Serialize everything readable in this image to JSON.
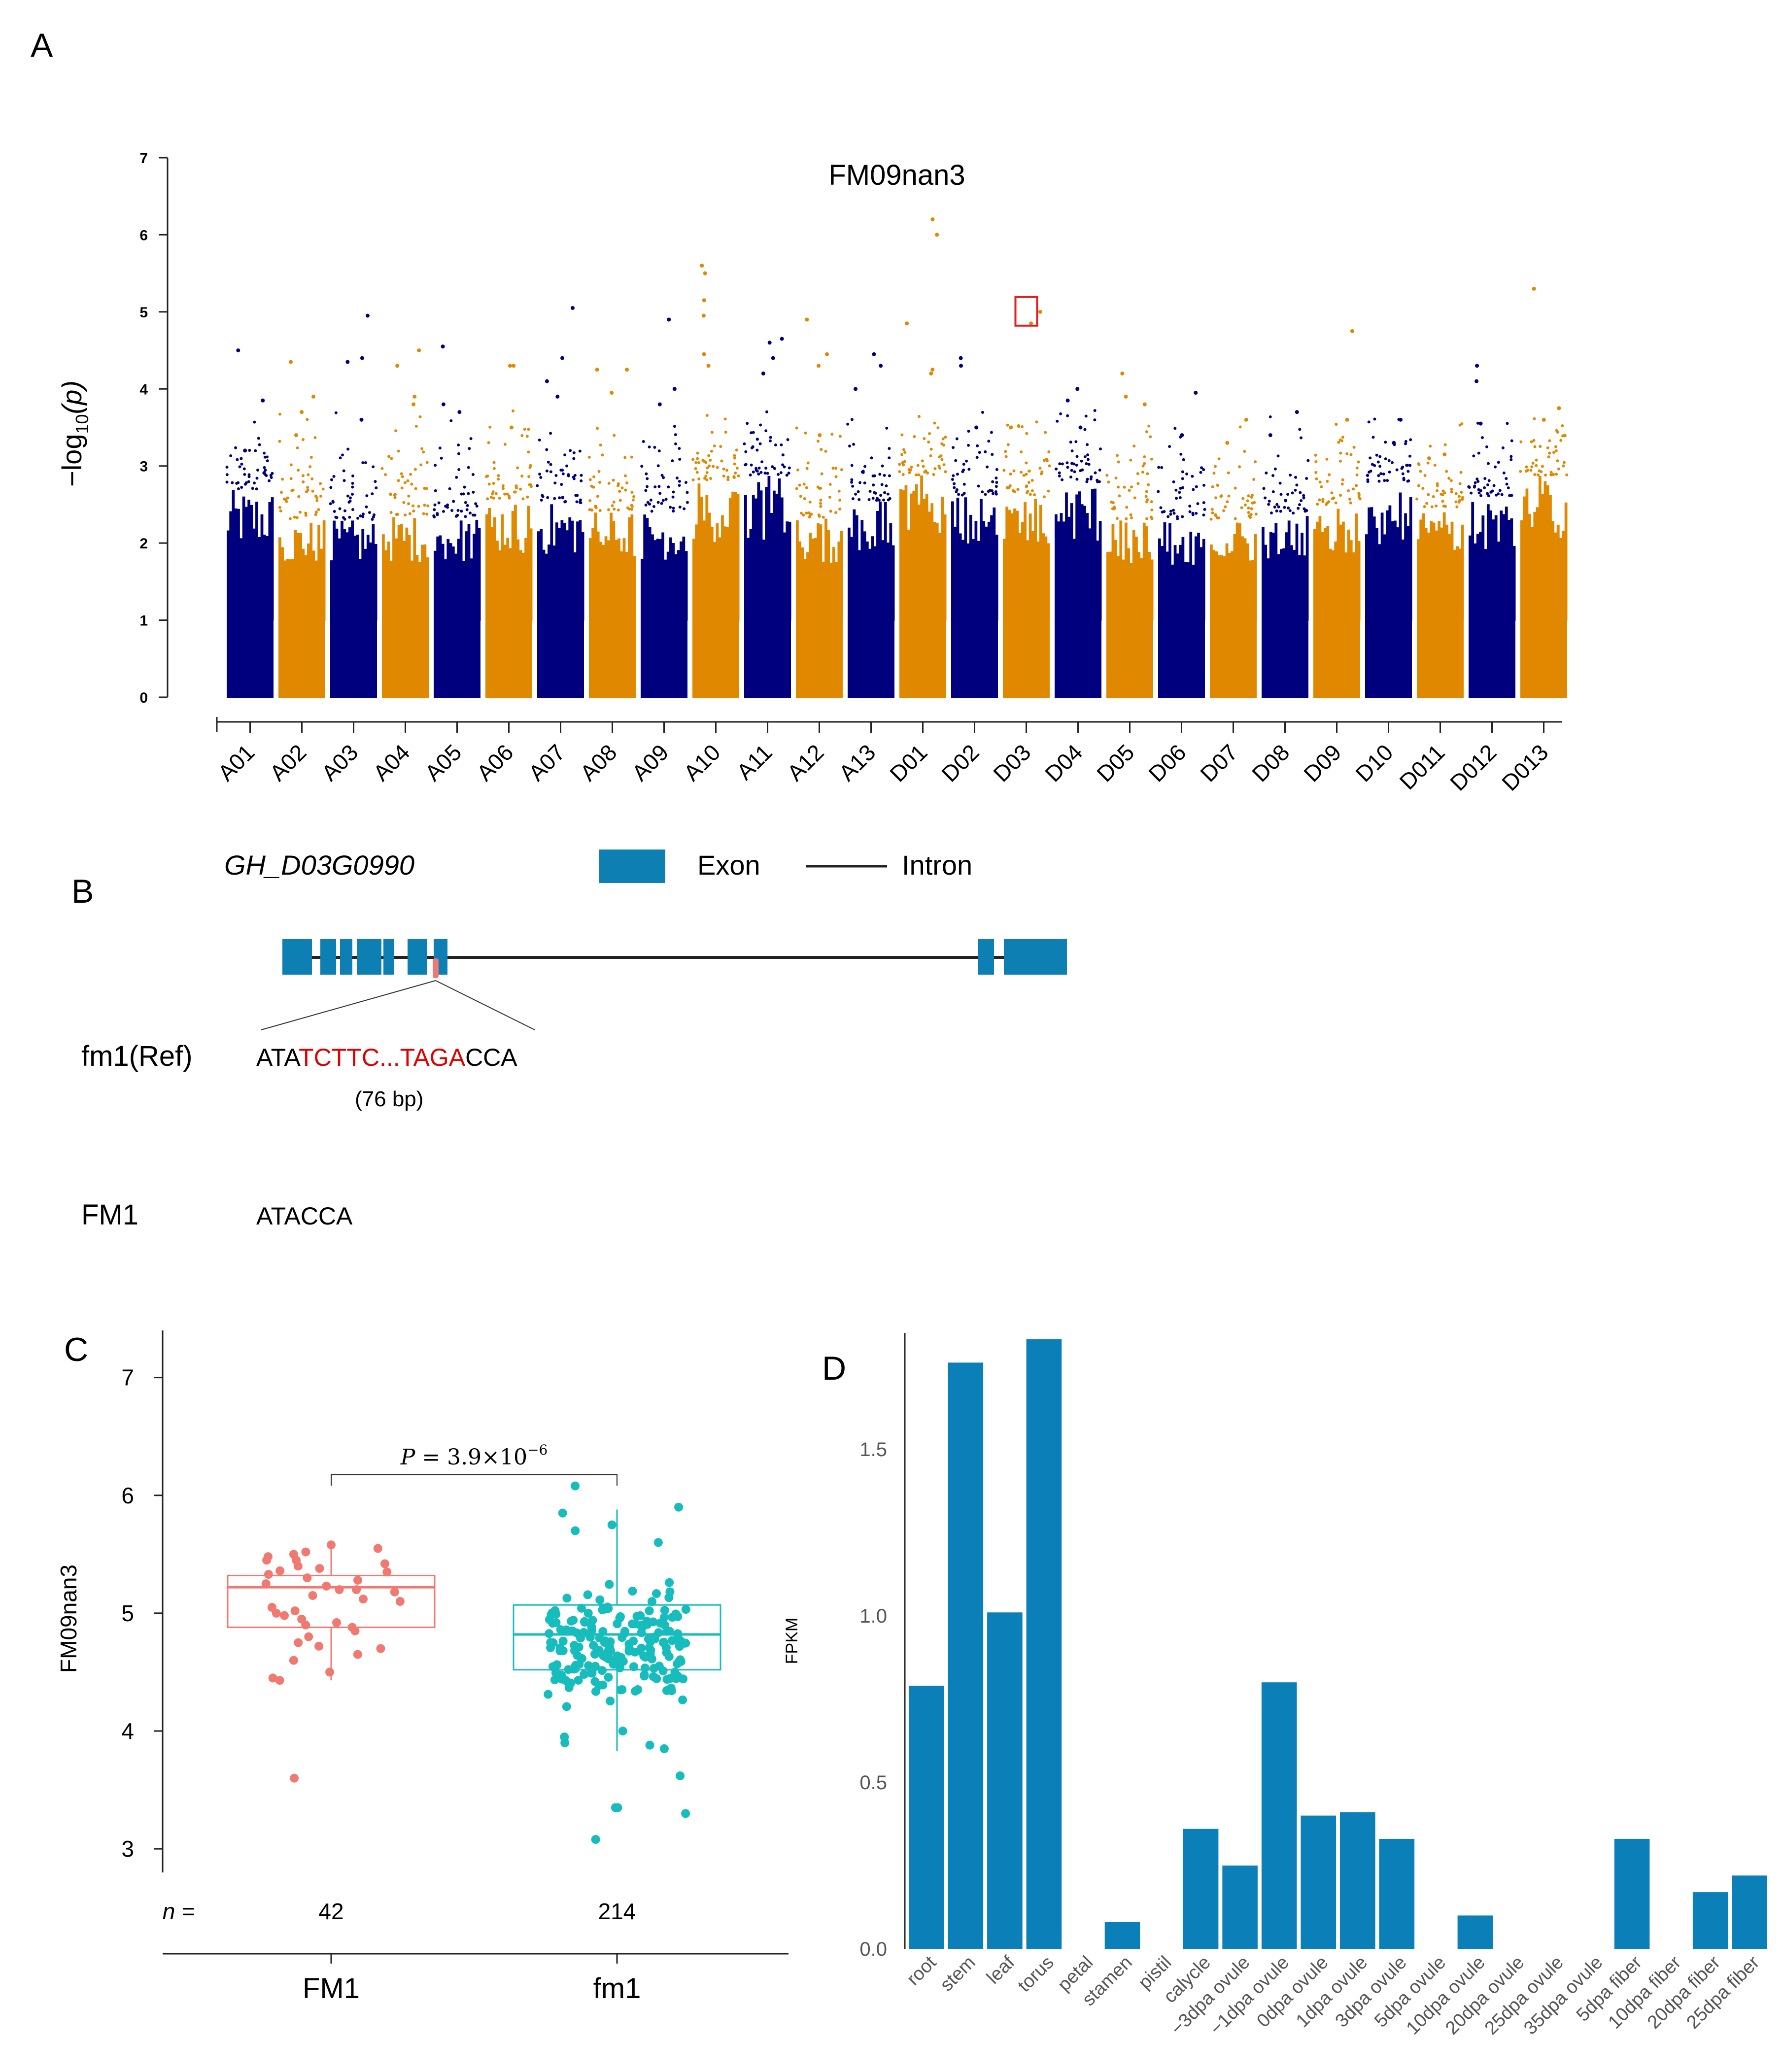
{
  "panel_a": {
    "label": "A",
    "chart_data": {
      "type": "scatter",
      "title": "FM09nan3",
      "xlabel": "",
      "ylabel_main": "−log",
      "ylabel_sub": "10",
      "ylabel_tail": "(p)",
      "ylim": [
        0,
        7
      ],
      "yticks": [
        "0",
        "1",
        "2",
        "3",
        "4",
        "5",
        "6",
        "7"
      ],
      "colors": {
        "blue": "#00007f",
        "orange": "#e08800"
      },
      "chromosomes": [
        {
          "name": "A01",
          "color": "blue",
          "top_hits": [
            4.5,
            3.85,
            3.2
          ]
        },
        {
          "name": "A02",
          "color": "orange",
          "top_hits": [
            4.35,
            3.9,
            3.7,
            3.4
          ]
        },
        {
          "name": "A03",
          "color": "blue",
          "top_hits": [
            4.95,
            4.4,
            4.35,
            3.6
          ]
        },
        {
          "name": "A04",
          "color": "orange",
          "top_hits": [
            4.5,
            4.3,
            3.9,
            3.8
          ]
        },
        {
          "name": "A05",
          "color": "blue",
          "top_hits": [
            4.55,
            3.8,
            3.7
          ]
        },
        {
          "name": "A06",
          "color": "orange",
          "top_hits": [
            4.3,
            4.3,
            3.5
          ]
        },
        {
          "name": "A07",
          "color": "blue",
          "top_hits": [
            5.05,
            4.4,
            4.1,
            3.9
          ]
        },
        {
          "name": "A08",
          "color": "orange",
          "top_hits": [
            4.25,
            4.25,
            3.95
          ]
        },
        {
          "name": "A09",
          "color": "blue",
          "top_hits": [
            4.9,
            4.0,
            3.8
          ]
        },
        {
          "name": "A10",
          "color": "orange",
          "top_hits": [
            5.6,
            5.5,
            5.15,
            4.95,
            4.45,
            4.3
          ]
        },
        {
          "name": "A11",
          "color": "blue",
          "top_hits": [
            4.65,
            4.6,
            4.4,
            4.2
          ]
        },
        {
          "name": "A12",
          "color": "orange",
          "top_hits": [
            4.9,
            4.45,
            4.3,
            3.4
          ]
        },
        {
          "name": "A13",
          "color": "blue",
          "top_hits": [
            4.45,
            4.3,
            4.0
          ]
        },
        {
          "name": "D01",
          "color": "orange",
          "top_hits": [
            6.2,
            6.0,
            4.85,
            4.25,
            4.2
          ]
        },
        {
          "name": "D02",
          "color": "blue",
          "top_hits": [
            4.4,
            4.3,
            3.5
          ]
        },
        {
          "name": "D03",
          "color": "orange",
          "top_hits": [
            5.0,
            4.85,
            3.5
          ]
        },
        {
          "name": "D04",
          "color": "blue",
          "top_hits": [
            4.0,
            3.85,
            3.5
          ]
        },
        {
          "name": "D05",
          "color": "orange",
          "top_hits": [
            4.2,
            3.9,
            3.8
          ]
        },
        {
          "name": "D06",
          "color": "blue",
          "top_hits": [
            3.95,
            3.4
          ]
        },
        {
          "name": "D07",
          "color": "orange",
          "top_hits": [
            3.6,
            3.3
          ]
        },
        {
          "name": "D08",
          "color": "blue",
          "top_hits": [
            3.7,
            3.4
          ]
        },
        {
          "name": "D09",
          "color": "orange",
          "top_hits": [
            4.75,
            3.6
          ]
        },
        {
          "name": "D10",
          "color": "blue",
          "top_hits": [
            3.6,
            3.3
          ]
        },
        {
          "name": "D011",
          "color": "orange",
          "top_hits": [
            3.15,
            3.1
          ]
        },
        {
          "name": "D012",
          "color": "blue",
          "top_hits": [
            4.3,
            4.1,
            3.55
          ]
        },
        {
          "name": "D013",
          "color": "orange",
          "top_hits": [
            5.3,
            3.75,
            3.6
          ]
        }
      ],
      "highlight": {
        "chromosome": "D03",
        "value": 5.0,
        "color": "#e02020"
      }
    }
  },
  "panel_b": {
    "label": "B",
    "gene_name": "GH_D03G0990",
    "legend_exon": "Exon",
    "legend_intron": "Intron",
    "exon_color": "#0e7fb2",
    "indel_color": "#ee7777",
    "ref_label": "fm1(Ref)",
    "ref_seq_prefix": "ATA",
    "ref_seq_deleted": "TCTTC...TAGA",
    "ref_seq_suffix": "CCA",
    "deletion_size": "(76 bp)",
    "alt_label": "FM1",
    "alt_seq": "ATACCA",
    "deleted_color": "#e00000"
  },
  "panel_c": {
    "label": "C",
    "chart_data": {
      "type": "box",
      "ylabel": "FM09nan3",
      "ylim": [
        2.8,
        7.4
      ],
      "yticks": [
        3,
        4,
        5,
        6,
        7
      ],
      "categories": [
        "FM1",
        "fm1"
      ],
      "n_prefix": "n =",
      "n": [
        "42",
        "214"
      ],
      "p_label_italic": "P",
      "p_label_rest": " = 3.9×10",
      "p_label_exp": "−6",
      "groups": [
        {
          "name": "FM1",
          "color": "#f07a72",
          "q1": 4.88,
          "median": 5.22,
          "q3": 5.32,
          "whisker_low": 4.43,
          "whisker_high": 5.55,
          "points": [
            5.58,
            5.55,
            5.52,
            5.5,
            5.48,
            5.45,
            5.45,
            5.42,
            5.4,
            5.38,
            5.36,
            5.35,
            5.33,
            5.3,
            5.28,
            5.25,
            5.23,
            5.2,
            5.2,
            5.18,
            5.15,
            5.12,
            5.1,
            5.05,
            5.02,
            5.0,
            4.98,
            4.95,
            4.92,
            4.9,
            4.88,
            4.85,
            4.8,
            4.75,
            4.72,
            4.7,
            4.65,
            4.6,
            4.5,
            4.45,
            4.43,
            3.6
          ]
        },
        {
          "name": "fm1",
          "color": "#17bcbc",
          "q1": 4.52,
          "median": 4.82,
          "q3": 5.07,
          "whisker_low": 3.83,
          "whisker_high": 5.88,
          "points": [
            6.08,
            5.9,
            5.85,
            5.75,
            5.7,
            5.6,
            3.35,
            3.35,
            3.3,
            3.08,
            3.62,
            3.85,
            3.88,
            3.9,
            3.95,
            4.0
          ]
        }
      ]
    }
  },
  "panel_d": {
    "label": "D",
    "chart_data": {
      "type": "bar",
      "ylabel": "FPKM",
      "ylim": [
        0,
        1.83
      ],
      "yticks": [
        "0.0",
        "0.5",
        "1.0",
        "1.5"
      ],
      "color": "#0a7fb8",
      "categories": [
        "root",
        "stem",
        "leaf",
        "torus",
        "petal",
        "stamen",
        "pistil",
        "calycle",
        "−3dpa ovule",
        "−1dpa ovule",
        "0dpa ovule",
        "1dpa ovule",
        "3dpa ovule",
        "5dpa ovule",
        "10dpa ovule",
        "20dpa ovule",
        "25dpa ovule",
        "35dpa ovule",
        "5dpa fiber",
        "10dpa fiber",
        "20dpa fiber",
        "25dpa fiber"
      ],
      "values": [
        0.79,
        1.76,
        1.01,
        1.83,
        0.0,
        0.08,
        0.0,
        0.36,
        0.25,
        0.8,
        0.4,
        0.41,
        0.33,
        0.0,
        0.1,
        0.0,
        0.0,
        0.0,
        0.33,
        0.0,
        0.17,
        0.22
      ]
    }
  }
}
